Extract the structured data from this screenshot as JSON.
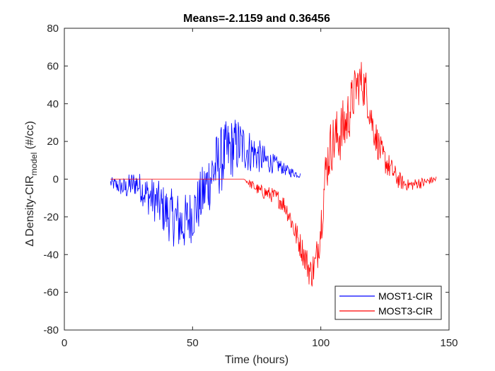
{
  "chart_data": {
    "type": "line",
    "title": "Means=-2.1159 and 0.36456",
    "xlabel": "Time (hours)",
    "ylabel": {
      "prefix": "Δ Density-CIR",
      "subscript": "model",
      "suffix": " (#/cc)"
    },
    "xlim": [
      0,
      150
    ],
    "ylim": [
      -80,
      80
    ],
    "xticks": [
      0,
      50,
      100,
      150
    ],
    "yticks": [
      -80,
      -60,
      -40,
      -20,
      0,
      20,
      40,
      60,
      80
    ],
    "legend_location": "bottom-right",
    "series": [
      {
        "name": "MOST1-CIR",
        "color": "#0000ff",
        "x": [
          18,
          20,
          22,
          24,
          26,
          28,
          30,
          32,
          34,
          36,
          38,
          40,
          42,
          44,
          46,
          48,
          50,
          52,
          54,
          56,
          58,
          60,
          62,
          64,
          66,
          68,
          70,
          72,
          74,
          76,
          78,
          80,
          82,
          84,
          86,
          88,
          90,
          92
        ],
        "y": [
          -2,
          -3,
          -4,
          -5,
          -3,
          -2,
          -5,
          -8,
          -10,
          -12,
          -15,
          -18,
          -20,
          -22,
          -24,
          -22,
          -18,
          -14,
          -8,
          -2,
          4,
          8,
          12,
          15,
          17,
          18,
          17,
          15,
          14,
          12,
          10,
          9,
          8,
          7,
          5,
          4,
          3,
          2
        ],
        "amplitude": [
          3,
          4,
          5,
          6,
          7,
          7,
          8,
          10,
          11,
          12,
          13,
          14,
          15,
          16,
          16,
          15,
          15,
          15,
          16,
          17,
          18,
          18,
          18,
          17,
          16,
          15,
          13,
          12,
          10,
          9,
          8,
          6,
          5,
          4,
          3,
          3,
          2,
          1.5
        ]
      },
      {
        "name": "MOST3-CIR",
        "color": "#ff0000",
        "x": [
          18,
          30,
          40,
          50,
          60,
          68,
          70,
          72,
          74,
          76,
          78,
          80,
          82,
          84,
          86,
          88,
          90,
          92,
          94,
          96,
          98,
          100,
          102,
          104,
          106,
          108,
          110,
          112,
          114,
          116,
          118,
          120,
          122,
          124,
          126,
          128,
          130,
          132,
          134,
          136,
          138,
          140,
          142,
          145
        ],
        "y": [
          0,
          0,
          0,
          0,
          0,
          0,
          0,
          -2,
          -4,
          -6,
          -7,
          -8,
          -9,
          -11,
          -14,
          -20,
          -28,
          -35,
          -42,
          -50,
          -45,
          -25,
          5,
          18,
          22,
          25,
          30,
          40,
          50,
          52,
          45,
          30,
          20,
          12,
          8,
          4,
          0,
          -2,
          -3,
          -3,
          -2,
          -2,
          -1,
          0
        ],
        "amplitude": [
          0,
          0,
          0,
          0,
          0,
          0,
          0,
          2,
          3,
          3,
          4,
          4,
          4,
          5,
          5,
          6,
          7,
          7,
          8,
          9,
          10,
          12,
          14,
          15,
          15,
          16,
          16,
          14,
          12,
          12,
          12,
          10,
          9,
          8,
          7,
          6,
          5,
          4,
          3,
          3,
          3,
          3,
          2,
          2
        ]
      }
    ]
  }
}
